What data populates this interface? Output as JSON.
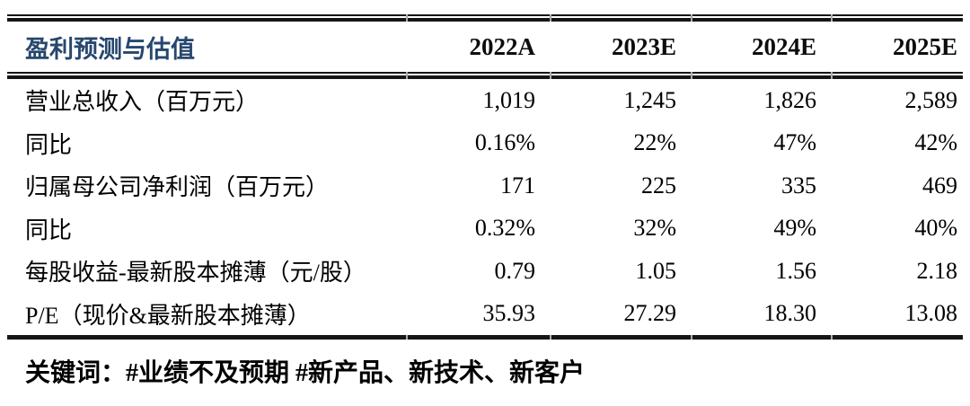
{
  "table": {
    "header": {
      "title": "盈利预测与估值",
      "columns": [
        "2022A",
        "2023E",
        "2024E",
        "2025E"
      ]
    },
    "rows": [
      {
        "label": "营业总收入（百万元）",
        "values": [
          "1,019",
          "1,245",
          "1,826",
          "2,589"
        ]
      },
      {
        "label": "同比",
        "values": [
          "0.16%",
          "22%",
          "47%",
          "42%"
        ]
      },
      {
        "label": "归属母公司净利润（百万元）",
        "values": [
          "171",
          "225",
          "335",
          "469"
        ]
      },
      {
        "label": "同比",
        "values": [
          "0.32%",
          "32%",
          "49%",
          "40%"
        ]
      },
      {
        "label": "每股收益-最新股本摊薄（元/股）",
        "values": [
          "0.79",
          "1.05",
          "1.56",
          "2.18"
        ]
      },
      {
        "label": "P/E（现价&最新股本摊薄）",
        "values": [
          "35.93",
          "27.29",
          "18.30",
          "13.08"
        ]
      }
    ]
  },
  "footer": {
    "keywords": "关键词：#业绩不及预期 #新产品、新技术、新客户"
  },
  "colors": {
    "title_blue": "#27476e",
    "rule_black": "#161616",
    "tick_gray": "#ababab"
  }
}
